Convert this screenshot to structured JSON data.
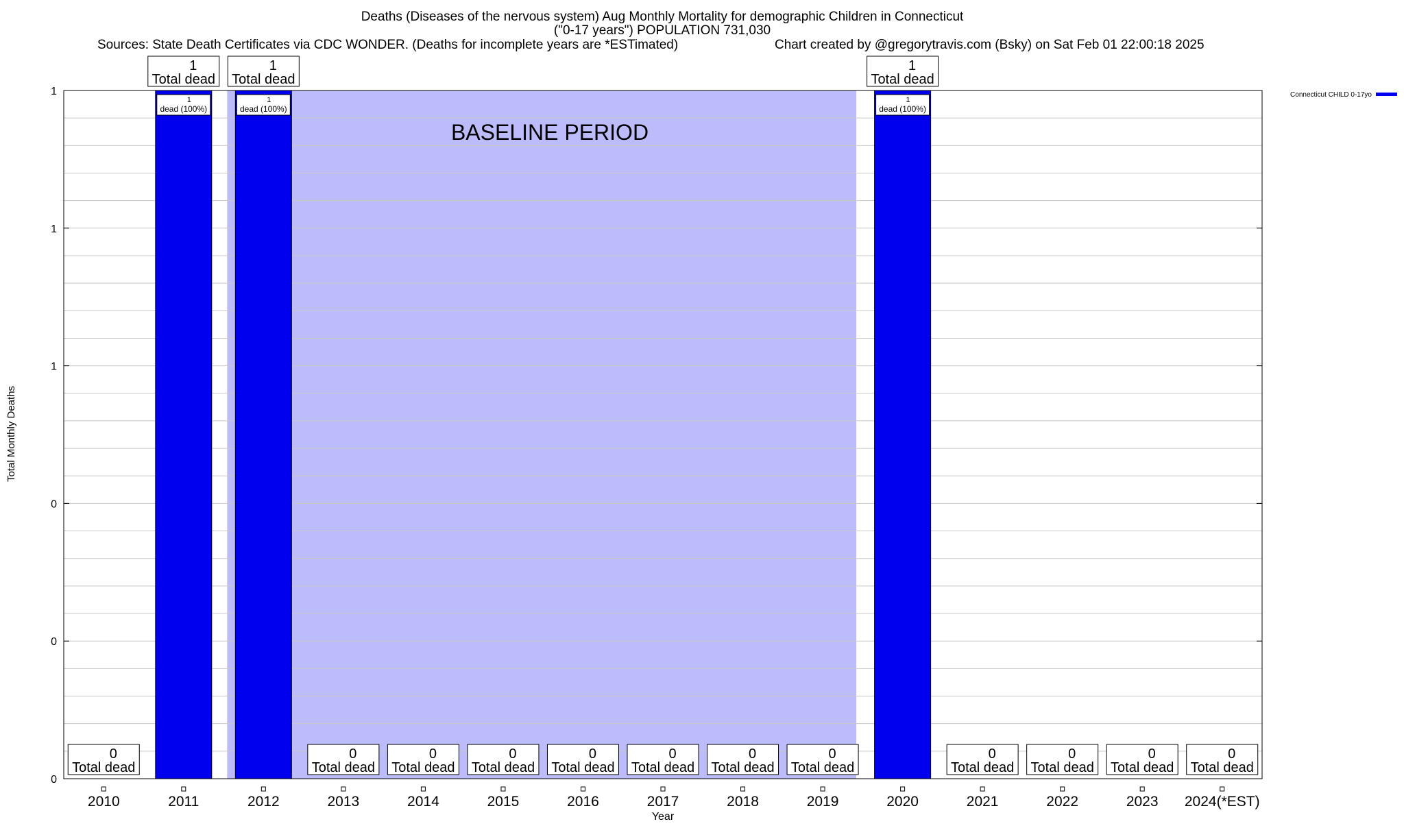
{
  "chart_data": {
    "type": "bar",
    "title_lines": [
      "Deaths (Diseases of the nervous system) Aug Monthly Mortality for demographic Children in Connecticut",
      "(\"0-17 years\") POPULATION 731,030"
    ],
    "source_text": "Sources: State Death Certificates via CDC WONDER. (Deaths for incomplete years are *ESTimated)",
    "credit_text": "Chart created by @gregorytravis.com (Bsky) on Sat Feb 01 22:00:18 2025",
    "xlabel": "Year",
    "ylabel": "Total Monthly Deaths",
    "ylim": [
      0,
      1
    ],
    "y_tick_labels": [
      "0",
      "0",
      "0",
      "1",
      "1",
      "1"
    ],
    "grid": true,
    "legend_position": "top-right",
    "categories": [
      "2010",
      "2011",
      "2012",
      "2013",
      "2014",
      "2015",
      "2016",
      "2017",
      "2018",
      "2019",
      "2020",
      "2021",
      "2022",
      "2023",
      "2024(*EST)"
    ],
    "series": [
      {
        "name": "Connecticut CHILD 0-17yo",
        "color": "#0000ee",
        "values": [
          0,
          1,
          1,
          0,
          0,
          0,
          0,
          0,
          0,
          0,
          1,
          0,
          0,
          0,
          0
        ]
      }
    ],
    "total_label_suffix": "Total dead",
    "bar_inner_label": "dead (100%)",
    "baseline": {
      "label": "BASELINE PERIOD",
      "start": "2012",
      "end": "2019",
      "color": "#bcbcfa"
    }
  }
}
